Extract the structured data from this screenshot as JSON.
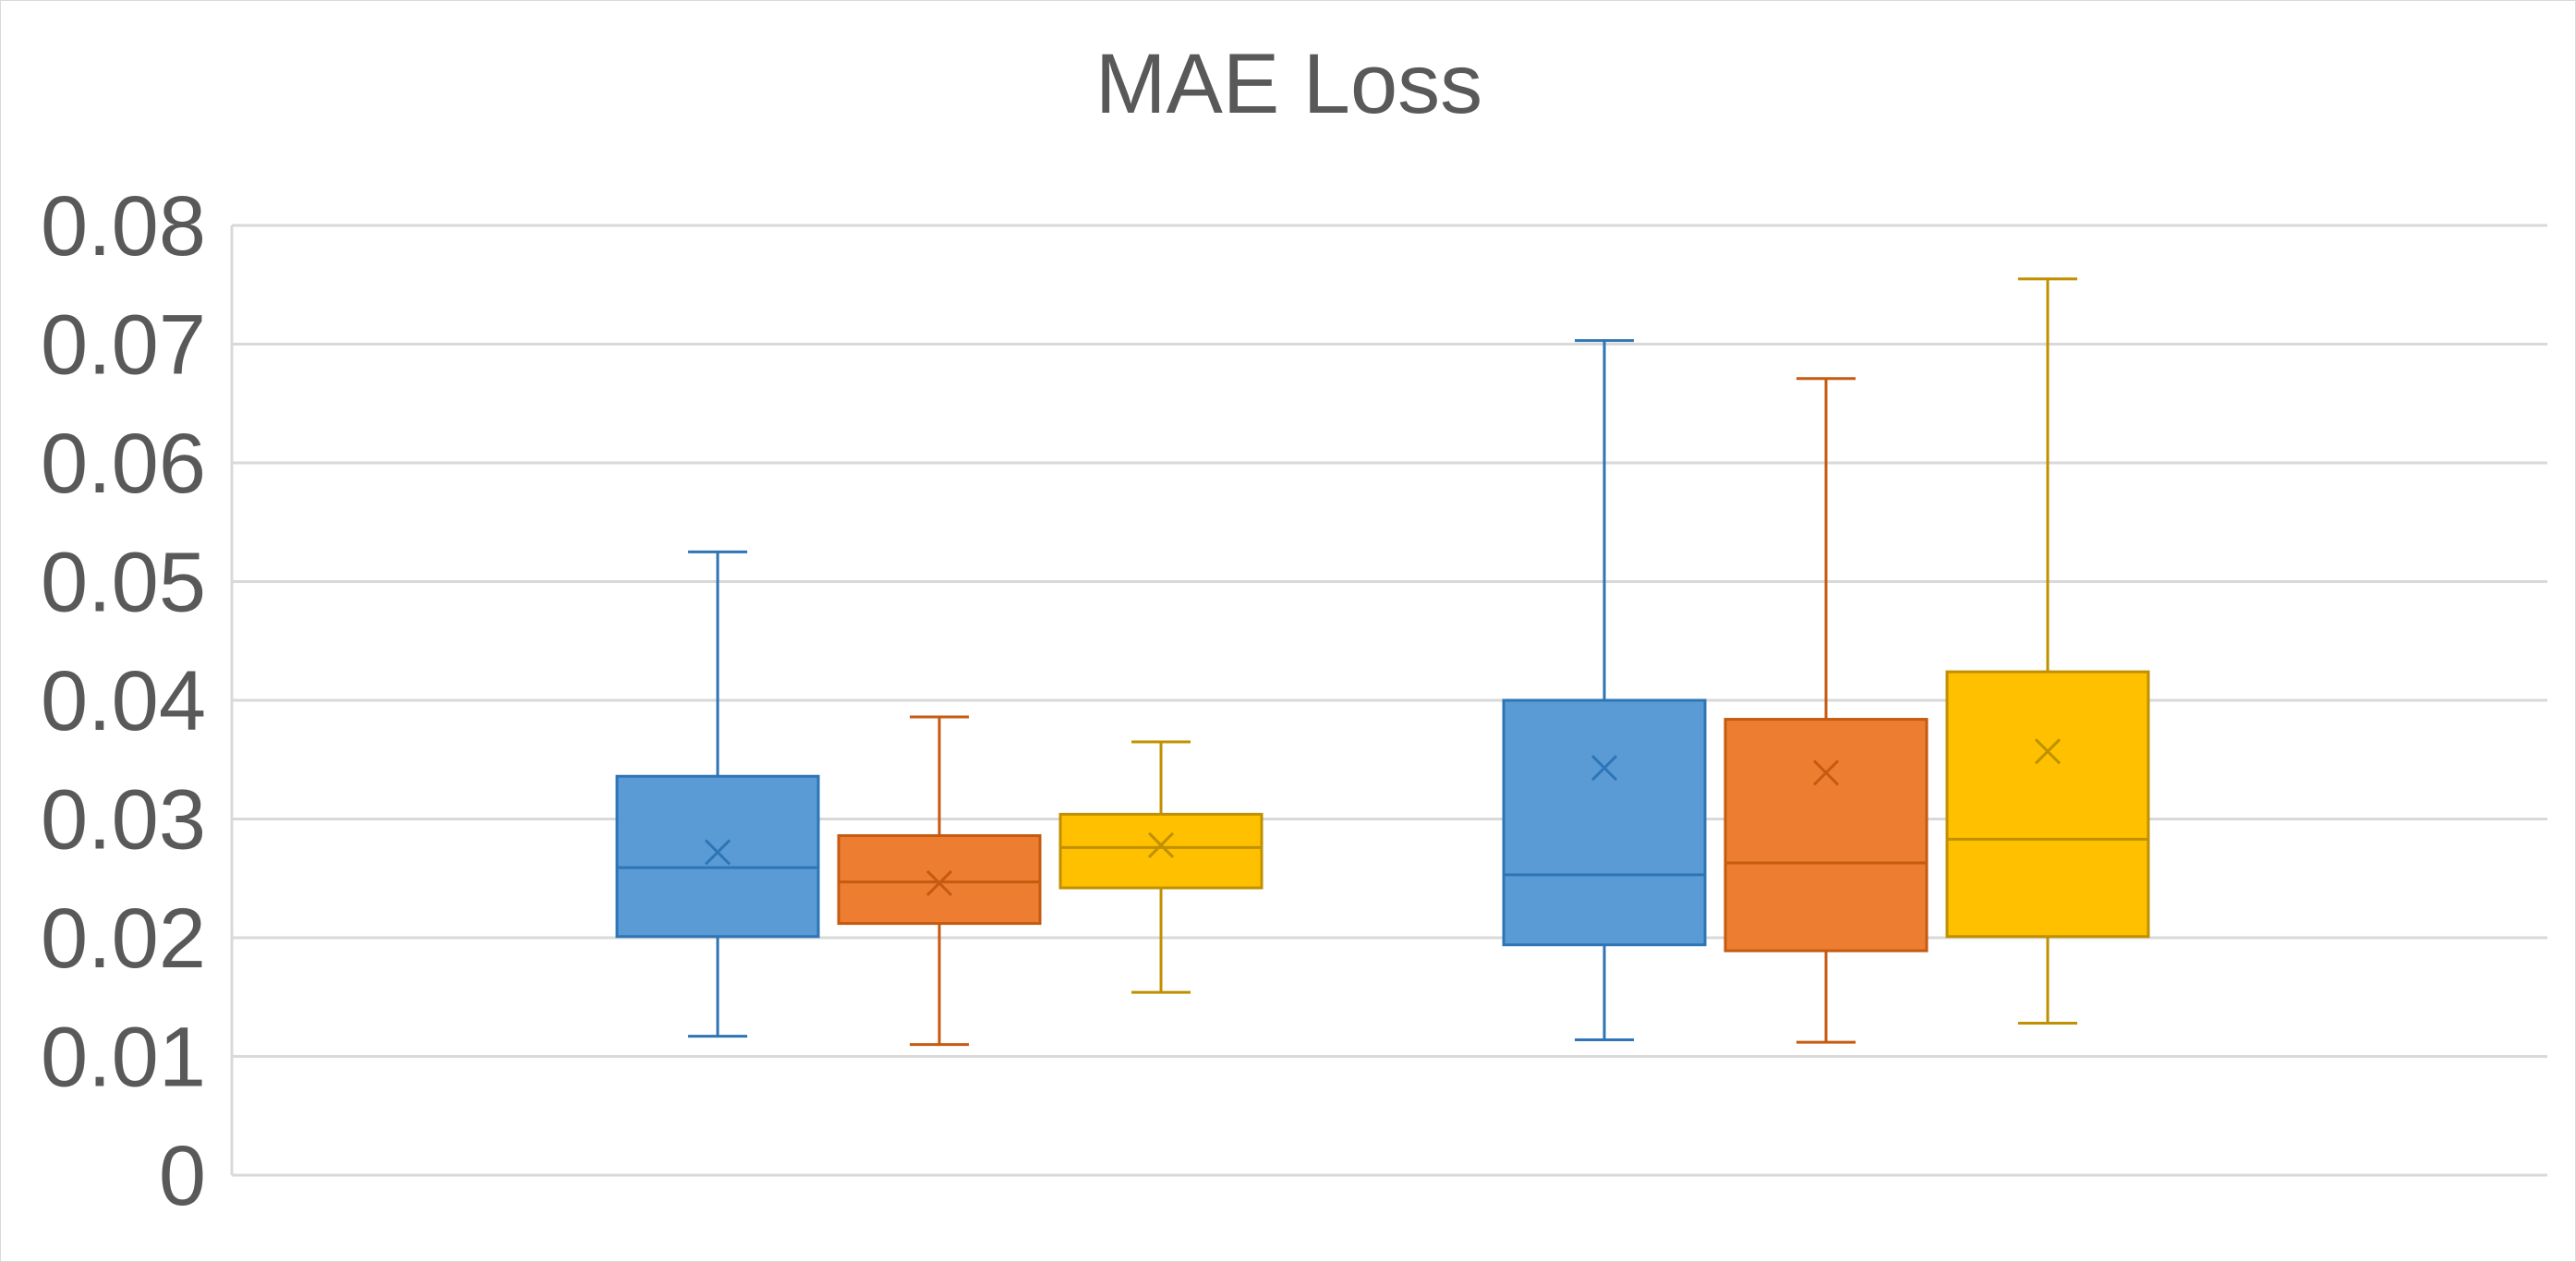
{
  "chart_data": {
    "type": "box",
    "title": "MAE Loss",
    "xlabel": "",
    "ylabel": "",
    "ylim": [
      0,
      0.08
    ],
    "yticks": [
      "0",
      "0.01",
      "0.02",
      "0.03",
      "0.04",
      "0.05",
      "0.06",
      "0.07",
      "0.08"
    ],
    "grid": true,
    "legend": "none",
    "groups": [
      {
        "boxes": [
          {
            "color": "#5b9bd5",
            "stroke": "#2e75b6",
            "min": 0.0117,
            "q1": 0.0201,
            "median": 0.0259,
            "q3": 0.0336,
            "max": 0.0525,
            "mean": 0.0272
          },
          {
            "color": "#ed7d31",
            "stroke": "#c55a11",
            "min": 0.011,
            "q1": 0.0212,
            "median": 0.0247,
            "q3": 0.0286,
            "max": 0.0386,
            "mean": 0.0246
          },
          {
            "color": "#ffc000",
            "stroke": "#bf9000",
            "min": 0.0154,
            "q1": 0.0242,
            "median": 0.0276,
            "q3": 0.0304,
            "max": 0.0365,
            "mean": 0.0278
          }
        ]
      },
      {
        "boxes": [
          {
            "color": "#5b9bd5",
            "stroke": "#2e75b6",
            "min": 0.0114,
            "q1": 0.0194,
            "median": 0.0253,
            "q3": 0.04,
            "max": 0.0703,
            "mean": 0.0343
          },
          {
            "color": "#ed7d31",
            "stroke": "#c55a11",
            "min": 0.0112,
            "q1": 0.0189,
            "median": 0.0263,
            "q3": 0.0384,
            "max": 0.0671,
            "mean": 0.0339
          },
          {
            "color": "#ffc000",
            "stroke": "#bf9000",
            "min": 0.0128,
            "q1": 0.0201,
            "median": 0.0283,
            "q3": 0.0424,
            "max": 0.0755,
            "mean": 0.0357
          }
        ]
      }
    ]
  }
}
